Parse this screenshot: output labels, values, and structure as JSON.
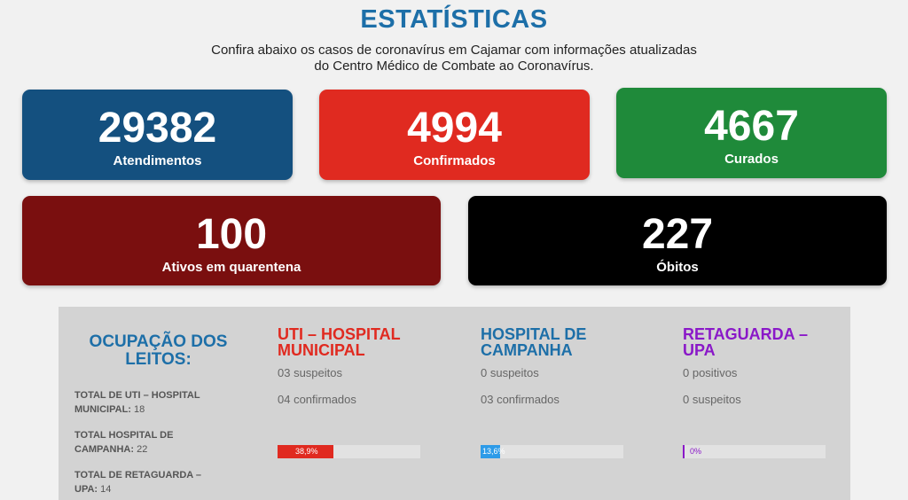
{
  "header": {
    "title": "ESTATÍSTICAS",
    "subtitle_line1": "Confira abaixo os casos de coronavírus em Cajamar com informações atualizadas",
    "subtitle_line2": "do Centro Médico de Combate ao Coronavírus."
  },
  "cards": [
    {
      "value": "29382",
      "label": "Atendimentos",
      "color": "#14507f"
    },
    {
      "value": "4994",
      "label": "Confirmados",
      "color": "#e02a20"
    },
    {
      "value": "4667",
      "label": "Curados",
      "color": "#1f8a3a"
    },
    {
      "value": "100",
      "label": "Ativos em quarentena",
      "color": "#7a0f0f"
    },
    {
      "value": "227",
      "label": "Óbitos",
      "color": "#000000"
    }
  ],
  "occupancy": {
    "title_line1": "OCUPAÇÃO DOS",
    "title_line2": "LEITOS:",
    "totals": [
      {
        "label": "TOTAL DE UTI – HOSPITAL MUNICIPAL:",
        "value": "18"
      },
      {
        "label": "TOTAL HOSPITAL DE CAMPANHA:",
        "value": "22"
      },
      {
        "label": "TOTAL DE RETAGUARDA – UPA:",
        "value": "14"
      }
    ],
    "columns": [
      {
        "title_line1": "UTI – HOSPITAL",
        "title_line2": "MUNICIPAL",
        "color": "#e02a20",
        "info1": "03 suspeitos",
        "info2": "04 confirmados",
        "percent_label": "38,9%",
        "percent": 38.9
      },
      {
        "title_line1": "HOSPITAL DE",
        "title_line2": "CAMPANHA",
        "color": "#1d6fa8",
        "info1": "0 suspeitos",
        "info2": "03 confirmados",
        "percent_label": "13,6%",
        "percent": 13.6,
        "bar_color": "#2d9be8"
      },
      {
        "title_line1": "RETAGUARDA –",
        "title_line2": "UPA",
        "color": "#8a18c8",
        "info1": "0 positivos",
        "info2": "0 suspeitos",
        "percent_label": "0%",
        "percent": 0
      }
    ]
  }
}
